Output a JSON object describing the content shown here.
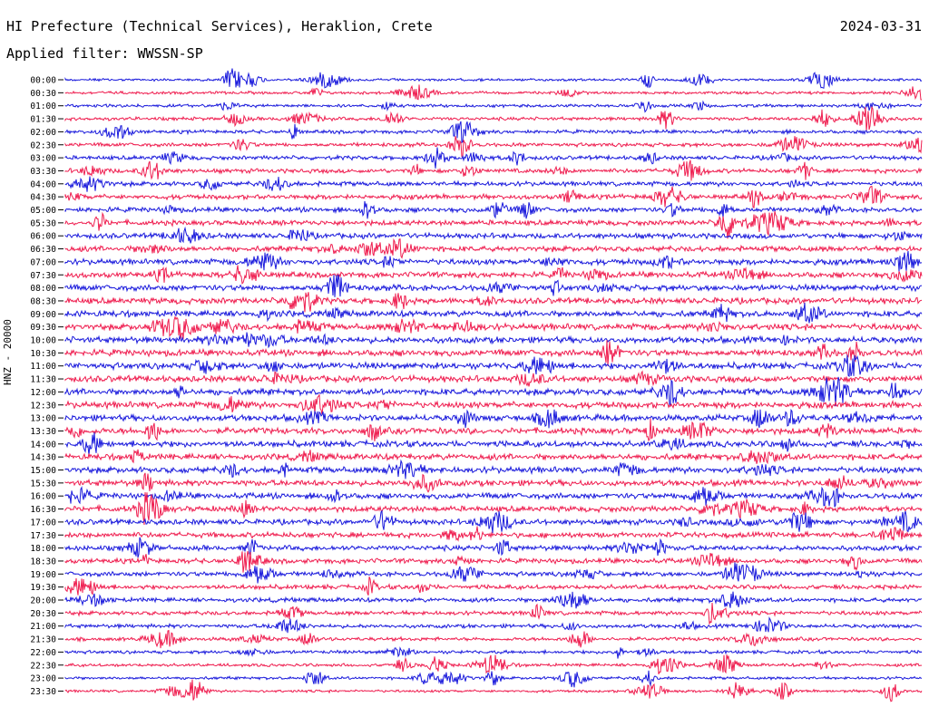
{
  "header": {
    "title": "HI Prefecture (Technical Services), Heraklion, Crete",
    "date": "2024-03-31",
    "filter": "Applied filter: WWSSN-SP"
  },
  "chart_data": {
    "type": "line",
    "ylabel": "HNZ - 20000",
    "categories": [
      "00:00",
      "00:30",
      "01:00",
      "01:30",
      "02:00",
      "02:30",
      "03:00",
      "03:30",
      "04:00",
      "04:30",
      "05:00",
      "05:30",
      "06:00",
      "06:30",
      "07:00",
      "07:30",
      "08:00",
      "08:30",
      "09:00",
      "09:30",
      "10:00",
      "10:30",
      "11:00",
      "11:30",
      "12:00",
      "12:30",
      "13:00",
      "13:30",
      "14:00",
      "14:30",
      "15:00",
      "15:30",
      "16:00",
      "16:30",
      "17:00",
      "17:30",
      "18:00",
      "18:30",
      "19:00",
      "19:30",
      "20:00",
      "20:30",
      "21:00",
      "21:30",
      "22:00",
      "22:30",
      "23:00",
      "23:30"
    ],
    "grid": false,
    "colors": {
      "even_trace": "#1a1adc",
      "odd_trace": "#ef1d4f"
    }
  }
}
